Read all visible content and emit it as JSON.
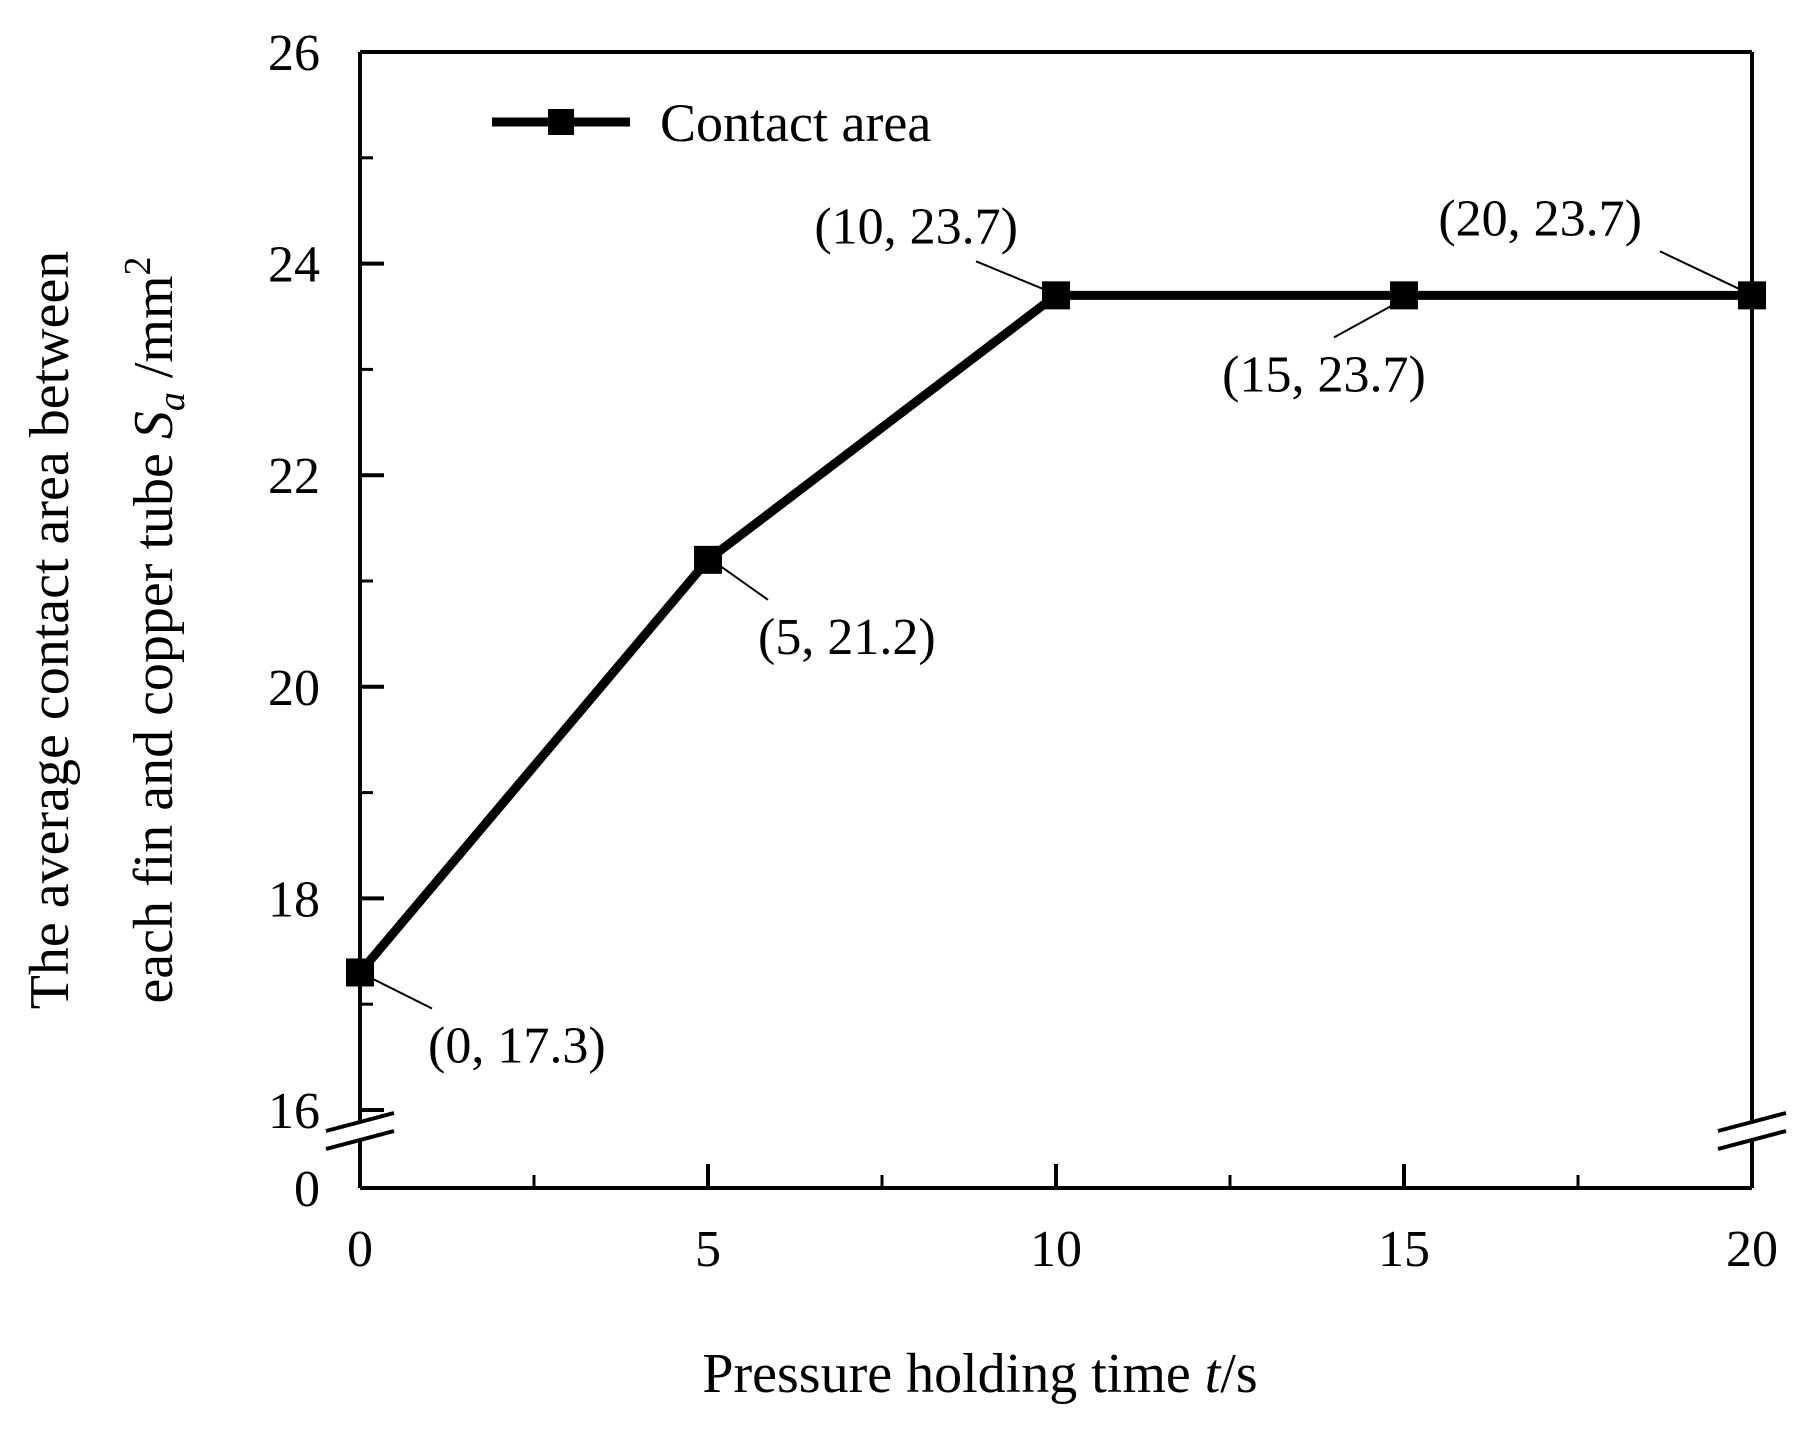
{
  "chart_data": {
    "type": "line",
    "xlabel": {
      "main": "Pressure holding time",
      "var": "t",
      "unit": "/s"
    },
    "ylabel": {
      "line1": "The average contact area between",
      "line2_main": "each fin and copper tube",
      "var": "S",
      "var_sub": "a",
      "unit": "/mm",
      "unit_sup": "2"
    },
    "x": [
      0,
      5,
      10,
      15,
      20
    ],
    "series": [
      {
        "name": "Contact area",
        "values": [
          17.3,
          21.2,
          23.7,
          23.7,
          23.7
        ],
        "color": "#000000",
        "marker": "square"
      }
    ],
    "xlim": [
      0,
      20
    ],
    "ylim": [
      16,
      26
    ],
    "y_axis_break": {
      "between": [
        0,
        16
      ]
    },
    "x_ticks": [
      0,
      5,
      10,
      15,
      20
    ],
    "x_tick_labels": [
      "0",
      "5",
      "10",
      "15",
      "20"
    ],
    "y_ticks": [
      0,
      16,
      18,
      20,
      22,
      24,
      26
    ],
    "y_tick_labels": [
      "0",
      "16",
      "18",
      "20",
      "22",
      "24",
      "26"
    ],
    "annotations": [
      {
        "text": "(0, 17.3)",
        "x": 0,
        "y": 17.3
      },
      {
        "text": "(5, 21.2)",
        "x": 5,
        "y": 21.2
      },
      {
        "text": "(10, 23.7)",
        "x": 10,
        "y": 23.7
      },
      {
        "text": "(15, 23.7)",
        "x": 15,
        "y": 23.7
      },
      {
        "text": "(20, 23.7)",
        "x": 20,
        "y": 23.7
      }
    ],
    "legend_position": "top-left",
    "grid": false
  }
}
